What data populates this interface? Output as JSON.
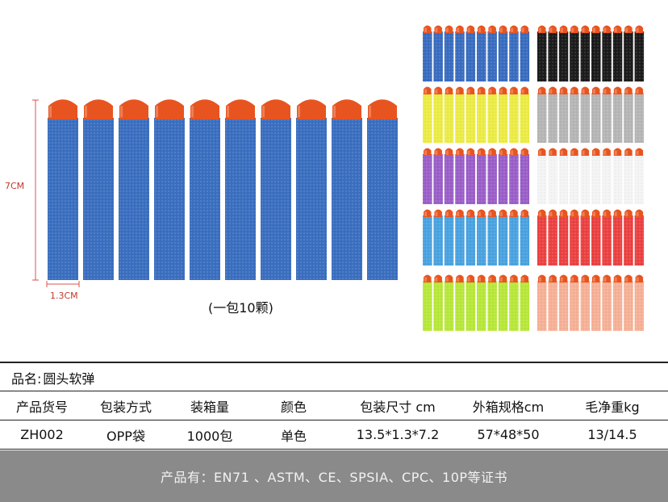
{
  "image": {
    "size_height_label": "7CM",
    "size_width_label": "1.3CM",
    "pack_caption": "(一包10颗)",
    "dart_colors": {
      "tip": "#e8541f",
      "main_body": "#3b6fc0",
      "variants": [
        {
          "name": "blue",
          "body": "#3a6dc0"
        },
        {
          "name": "black",
          "body": "#1c1c1c"
        },
        {
          "name": "yellow",
          "body": "#ecec46"
        },
        {
          "name": "gray",
          "body": "#b6b6b6"
        },
        {
          "name": "purple",
          "body": "#9b5fc9"
        },
        {
          "name": "white",
          "body": "#f4f4f4"
        },
        {
          "name": "light-blue",
          "body": "#4aa3e0"
        },
        {
          "name": "red",
          "body": "#ec4242"
        },
        {
          "name": "lime",
          "body": "#b8e83a"
        },
        {
          "name": "peach",
          "body": "#f6b197"
        }
      ]
    }
  },
  "product": {
    "name_label": "品名:",
    "name_value": "圆头软弹"
  },
  "table": {
    "headers": [
      "产品货号",
      "包装方式",
      "装箱量",
      "颜色",
      "包装尺寸 cm",
      "外箱规格cm",
      "毛净重kg"
    ],
    "row": [
      "ZH002",
      "OPP袋",
      "1000包",
      "单色",
      "13.5*1.3*7.2",
      "57*48*50",
      "13/14.5"
    ]
  },
  "footer": {
    "certifications": "产品有：EN71 、ASTM、CE、SPSIA、CPC、10P等证书"
  }
}
